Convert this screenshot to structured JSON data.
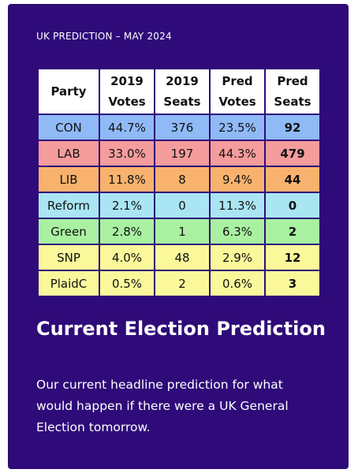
{
  "header": {
    "title": "UK PREDICTION – MAY 2024"
  },
  "table": {
    "columns": [
      "Party",
      "2019 Votes",
      "2019 Seats",
      "Pred Votes",
      "Pred Seats"
    ],
    "rows": [
      [
        "CON",
        "44.7%",
        "376",
        "23.5%",
        "92"
      ],
      [
        "LAB",
        "33.0%",
        "197",
        "44.3%",
        "479"
      ],
      [
        "LIB",
        "11.8%",
        "8",
        "9.4%",
        "44"
      ],
      [
        "Reform",
        "2.1%",
        "0",
        "11.3%",
        "0"
      ],
      [
        "Green",
        "2.8%",
        "1",
        "6.3%",
        "2"
      ],
      [
        "SNP",
        "4.0%",
        "48",
        "2.9%",
        "12"
      ],
      [
        "PlaidC",
        "0.5%",
        "2",
        "0.6%",
        "3"
      ]
    ]
  },
  "heading": "Current Election Prediction",
  "paragraph": "Our current headline prediction for what would happen if there were a UK General Election tomorrow."
}
